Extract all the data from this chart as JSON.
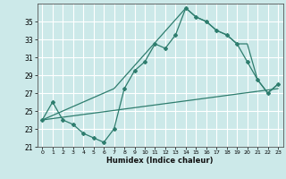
{
  "xlabel": "Humidex (Indice chaleur)",
  "background_color": "#cce9e9",
  "grid_color": "#ffffff",
  "line_color": "#2e7d6e",
  "xlim": [
    -0.5,
    23.5
  ],
  "ylim": [
    21,
    37
  ],
  "yticks": [
    21,
    23,
    25,
    27,
    29,
    31,
    33,
    35
  ],
  "xticks": [
    0,
    1,
    2,
    3,
    4,
    5,
    6,
    7,
    8,
    9,
    10,
    11,
    12,
    13,
    14,
    15,
    16,
    17,
    18,
    19,
    20,
    21,
    22,
    23
  ],
  "series1_x": [
    0,
    1,
    2,
    3,
    4,
    5,
    6,
    7,
    8,
    9,
    10,
    11,
    12,
    13,
    14,
    15,
    16,
    17,
    18,
    19,
    20,
    21,
    22,
    23
  ],
  "series1_y": [
    24.0,
    26.0,
    24.0,
    23.5,
    22.5,
    22.0,
    21.5,
    23.0,
    27.5,
    29.5,
    30.5,
    32.5,
    32.0,
    33.5,
    36.5,
    35.5,
    35.0,
    34.0,
    33.5,
    32.5,
    30.5,
    28.5,
    27.0,
    28.0
  ],
  "series2_x": [
    0,
    7,
    14,
    15,
    16,
    17,
    18,
    19,
    20,
    21,
    22,
    23
  ],
  "series2_y": [
    24.0,
    27.5,
    36.5,
    35.5,
    35.0,
    34.0,
    33.5,
    32.5,
    32.5,
    28.5,
    27.0,
    28.0
  ],
  "series3_x": [
    0,
    23
  ],
  "series3_y": [
    24.0,
    27.5
  ]
}
